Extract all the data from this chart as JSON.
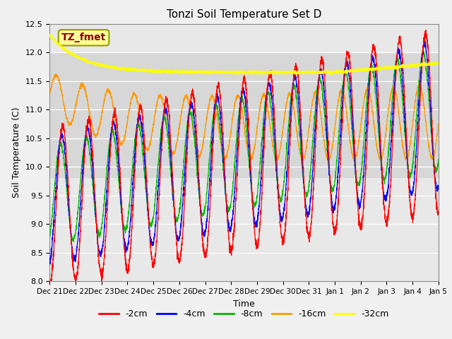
{
  "title": "Tonzi Soil Temperature Set D",
  "xlabel": "Time",
  "ylabel": "Soil Temperature (C)",
  "ylim": [
    8.0,
    12.5
  ],
  "legend_labels": [
    "-2cm",
    "-4cm",
    "-8cm",
    "-16cm",
    "-32cm"
  ],
  "legend_colors": [
    "#ff0000",
    "#0000ff",
    "#00bb00",
    "#ff9900",
    "#ffff00"
  ],
  "annotation_text": "TZ_fmet",
  "annotation_color": "#8b0000",
  "annotation_bg": "#ffff99",
  "annotation_border": "#999900",
  "bg_color": "#f0f0f0",
  "plot_bg": "#e8e8e8",
  "stripe_lo": 9.8,
  "stripe_hi": 12.0,
  "stripe_color": "#cccccc",
  "n_points": 3360,
  "end_day": 15.0,
  "tick_positions": [
    0,
    1,
    2,
    3,
    4,
    5,
    6,
    7,
    8,
    9,
    10,
    11,
    12,
    13,
    14,
    15
  ],
  "tick_labels": [
    "Dec 21",
    "Dec 22",
    "Dec 23",
    "Dec 24",
    "Dec 25",
    "Dec 26",
    "Dec 27",
    "Dec 28",
    "Dec 29",
    "Dec 30",
    "Dec 31",
    "Jan 1",
    "Jan 2",
    "Jan 3",
    "Jan 4",
    "Jan 5"
  ]
}
